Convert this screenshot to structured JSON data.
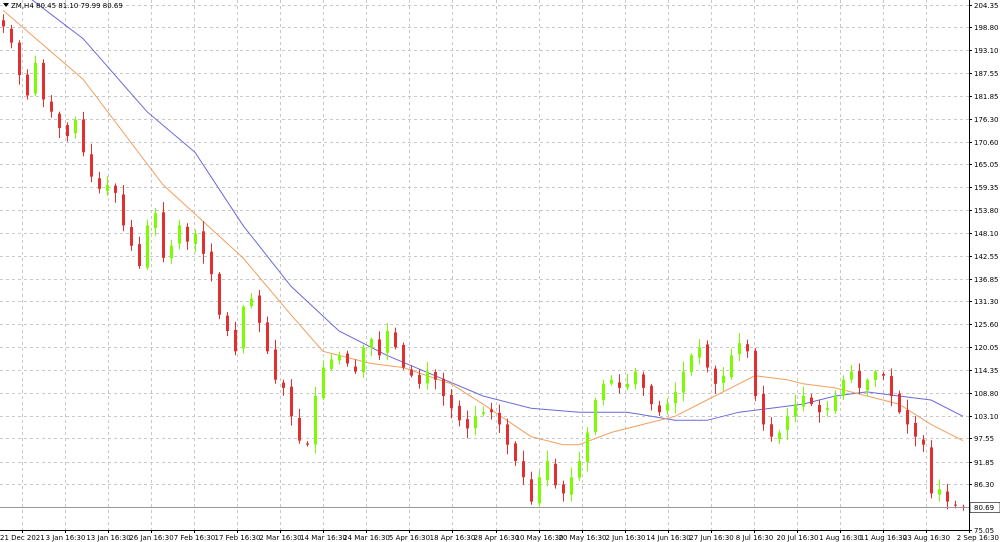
{
  "chart_data": {
    "type": "candlestick",
    "title": "ZM,H4  80.45 81.10 79.99 80.69",
    "symbol": "ZM,H4",
    "ohlc_readout": {
      "open": 80.45,
      "high": 81.1,
      "low": 79.99,
      "close": 80.69
    },
    "current_price_label": "80.69",
    "current_price": 80.69,
    "ylim": [
      75.0,
      205.5
    ],
    "y_ticks": [
      "204.35",
      "198.80",
      "193.10",
      "187.55",
      "181.85",
      "176.30",
      "170.60",
      "165.05",
      "159.35",
      "153.80",
      "148.10",
      "142.55",
      "136.85",
      "131.30",
      "125.60",
      "120.05",
      "114.35",
      "108.80",
      "103.10",
      "97.55",
      "91.85",
      "86.30",
      "80.69",
      "75.05"
    ],
    "x_tick_labels": [
      "21 Dec 2021",
      "3 Jan 16:30",
      "13 Jan 16:30",
      "26 Jan 16:30",
      "7 Feb 16:30",
      "17 Feb 16:30",
      "2 Mar 16:30",
      "14 Mar 16:30",
      "24 Mar 16:30",
      "5 Apr 16:30",
      "18 Apr 16:30",
      "28 Apr 16:30",
      "10 May 16:30",
      "20 May 16:30",
      "2 Jun 16:30",
      "14 Jun 16:30",
      "27 Jun 16:30",
      "8 Jul 16:30",
      "20 Jul 16:30",
      "1 Aug 16:30",
      "11 Aug 16:30",
      "23 Aug 16:30",
      "2 Sep 16:30"
    ],
    "series": [
      {
        "type": "candlestick",
        "up_color": "#7cfc00",
        "down_color": "#e03030"
      },
      {
        "type": "moving-average",
        "color": "#f0a060"
      },
      {
        "type": "moving-average",
        "color": "#6a6ad8"
      }
    ],
    "close_path": [
      [
        0,
        199
      ],
      [
        1,
        195
      ],
      [
        2,
        187
      ],
      [
        3,
        182
      ],
      [
        4,
        190
      ],
      [
        5,
        181
      ],
      [
        6,
        178
      ],
      [
        7,
        174
      ],
      [
        8,
        172
      ],
      [
        9,
        176
      ],
      [
        10,
        168
      ],
      [
        11,
        162
      ],
      [
        12,
        159
      ],
      [
        13,
        160
      ],
      [
        14,
        158
      ],
      [
        15,
        150
      ],
      [
        16,
        145
      ],
      [
        17,
        140
      ],
      [
        18,
        150
      ],
      [
        19,
        153
      ],
      [
        20,
        142
      ],
      [
        21,
        145
      ],
      [
        22,
        150
      ],
      [
        23,
        146
      ],
      [
        24,
        148
      ],
      [
        25,
        143
      ],
      [
        26,
        138
      ],
      [
        27,
        128
      ],
      [
        28,
        124
      ],
      [
        29,
        119
      ],
      [
        30,
        130
      ],
      [
        31,
        132
      ],
      [
        32,
        126
      ],
      [
        33,
        119
      ],
      [
        34,
        112
      ],
      [
        35,
        110
      ],
      [
        36,
        103
      ],
      [
        37,
        97
      ],
      [
        38,
        96
      ],
      [
        39,
        108
      ],
      [
        40,
        115
      ],
      [
        41,
        117
      ],
      [
        42,
        118
      ],
      [
        43,
        116
      ],
      [
        44,
        114
      ],
      [
        45,
        120
      ],
      [
        46,
        122
      ],
      [
        47,
        118
      ],
      [
        48,
        124
      ],
      [
        49,
        120
      ],
      [
        50,
        115
      ],
      [
        51,
        113
      ],
      [
        52,
        111
      ],
      [
        53,
        114
      ],
      [
        54,
        112
      ],
      [
        55,
        108
      ],
      [
        56,
        105
      ],
      [
        57,
        102
      ],
      [
        58,
        100
      ],
      [
        59,
        103
      ],
      [
        60,
        104
      ],
      [
        61,
        104
      ],
      [
        62,
        101
      ],
      [
        63,
        96
      ],
      [
        64,
        92
      ],
      [
        65,
        88
      ],
      [
        66,
        82
      ],
      [
        67,
        88
      ],
      [
        68,
        92
      ],
      [
        69,
        86
      ],
      [
        70,
        84
      ],
      [
        71,
        88
      ],
      [
        72,
        92
      ],
      [
        73,
        99
      ],
      [
        74,
        107
      ],
      [
        75,
        111
      ],
      [
        76,
        112
      ],
      [
        77,
        110
      ],
      [
        78,
        111
      ],
      [
        79,
        114
      ],
      [
        80,
        110
      ],
      [
        81,
        106
      ],
      [
        82,
        104
      ],
      [
        83,
        106
      ],
      [
        84,
        109
      ],
      [
        85,
        114
      ],
      [
        86,
        118
      ],
      [
        87,
        120
      ],
      [
        88,
        115
      ],
      [
        89,
        111
      ],
      [
        90,
        113
      ],
      [
        91,
        118
      ],
      [
        92,
        121
      ],
      [
        93,
        119
      ],
      [
        94,
        108
      ],
      [
        95,
        101
      ],
      [
        96,
        98
      ],
      [
        97,
        99
      ],
      [
        98,
        103
      ],
      [
        99,
        106
      ],
      [
        100,
        108
      ],
      [
        101,
        106
      ],
      [
        102,
        104
      ],
      [
        103,
        105
      ],
      [
        104,
        108
      ],
      [
        105,
        112
      ],
      [
        106,
        114
      ],
      [
        107,
        110
      ],
      [
        108,
        112
      ],
      [
        109,
        114
      ],
      [
        110,
        113
      ],
      [
        111,
        108
      ],
      [
        112,
        104
      ],
      [
        113,
        101
      ],
      [
        114,
        98
      ],
      [
        115,
        96
      ],
      [
        116,
        84
      ],
      [
        117,
        85
      ],
      [
        118,
        82
      ],
      [
        119,
        81
      ],
      [
        120,
        80.69
      ]
    ],
    "ma_fast": [
      [
        0,
        203
      ],
      [
        10,
        186
      ],
      [
        20,
        160
      ],
      [
        30,
        142
      ],
      [
        36,
        128
      ],
      [
        40,
        119
      ],
      [
        46,
        116
      ],
      [
        50,
        115
      ],
      [
        56,
        111
      ],
      [
        60,
        106
      ],
      [
        66,
        98
      ],
      [
        70,
        96
      ],
      [
        72,
        96
      ],
      [
        76,
        99
      ],
      [
        80,
        101
      ],
      [
        84,
        103
      ],
      [
        88,
        107
      ],
      [
        92,
        111
      ],
      [
        94,
        113
      ],
      [
        98,
        112
      ],
      [
        100,
        111
      ],
      [
        104,
        110
      ],
      [
        108,
        108
      ],
      [
        112,
        106
      ],
      [
        116,
        101
      ],
      [
        120,
        97
      ]
    ],
    "ma_slow": [
      [
        0,
        211
      ],
      [
        10,
        196
      ],
      [
        18,
        178
      ],
      [
        24,
        168
      ],
      [
        30,
        150
      ],
      [
        36,
        135
      ],
      [
        42,
        124
      ],
      [
        48,
        118
      ],
      [
        54,
        113
      ],
      [
        60,
        108
      ],
      [
        66,
        105
      ],
      [
        72,
        104
      ],
      [
        78,
        104
      ],
      [
        84,
        102
      ],
      [
        88,
        102
      ],
      [
        92,
        104
      ],
      [
        96,
        105
      ],
      [
        100,
        106
      ],
      [
        104,
        108
      ],
      [
        108,
        109
      ],
      [
        112,
        108
      ],
      [
        116,
        107
      ],
      [
        120,
        103
      ]
    ]
  }
}
